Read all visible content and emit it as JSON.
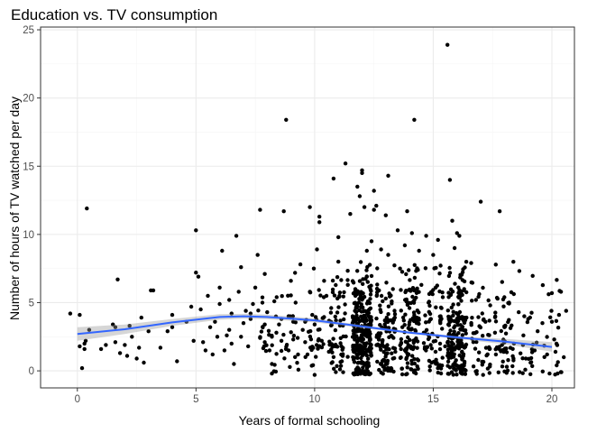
{
  "chart_data": {
    "type": "scatter",
    "title": "Education vs. TV consumption",
    "xlabel": "Years of formal schooling",
    "ylabel": "Number of hours of TV watched per day",
    "xlim": [
      -1.55,
      20.95
    ],
    "ylim": [
      -1.25,
      25.2
    ],
    "x_ticks": [
      0,
      5,
      10,
      15,
      20
    ],
    "y_ticks": [
      0,
      5,
      10,
      15,
      20,
      25
    ],
    "grid": true,
    "theme": "bw",
    "colors": {
      "points": "#000000",
      "smooth_line": "#3366FF",
      "confidence_band": "#999999",
      "grid_major": "#EBEBEB",
      "grid_minor": "#F5F5F5",
      "panel_border": "#333333"
    },
    "smooth": {
      "method": "loess",
      "x": [
        0,
        2,
        4,
        6,
        7,
        8,
        10,
        12,
        14,
        16,
        18,
        20
      ],
      "y": [
        2.7,
        3.05,
        3.55,
        3.95,
        4.0,
        3.95,
        3.7,
        3.25,
        2.8,
        2.45,
        2.15,
        1.75
      ],
      "lo": [
        2.2,
        2.7,
        3.3,
        3.75,
        3.82,
        3.78,
        3.55,
        3.15,
        2.72,
        2.35,
        1.95,
        1.4
      ],
      "hi": [
        3.2,
        3.4,
        3.8,
        4.15,
        4.18,
        4.12,
        3.85,
        3.35,
        2.88,
        2.55,
        2.35,
        2.1
      ]
    },
    "series": [
      {
        "points": [
          [
            -0.3,
            4.2
          ],
          [
            0.1,
            4.1
          ],
          [
            0.2,
            0.2
          ],
          [
            0.1,
            1.8
          ],
          [
            0.3,
            1.6
          ],
          [
            0.3,
            2.0
          ],
          [
            0.35,
            2.2
          ],
          [
            0.4,
            11.9
          ],
          [
            0.5,
            3.0
          ],
          [
            1.0,
            1.6
          ],
          [
            1.2,
            1.9
          ],
          [
            1.5,
            3.4
          ],
          [
            1.6,
            3.2
          ],
          [
            1.6,
            2.1
          ],
          [
            1.7,
            6.7
          ],
          [
            1.8,
            1.3
          ],
          [
            2.0,
            1.9
          ],
          [
            2.1,
            1.1
          ],
          [
            2.2,
            3.3
          ],
          [
            2.3,
            2.5
          ],
          [
            2.5,
            0.9
          ],
          [
            2.6,
            1.7
          ],
          [
            2.7,
            3.9
          ],
          [
            2.8,
            0.6
          ],
          [
            3.0,
            2.9
          ],
          [
            3.1,
            5.9
          ],
          [
            3.2,
            5.9
          ],
          [
            3.5,
            1.7
          ],
          [
            3.8,
            2.9
          ],
          [
            4.0,
            4.1
          ],
          [
            4.0,
            3.2
          ],
          [
            4.2,
            0.7
          ],
          [
            4.6,
            3.6
          ],
          [
            4.8,
            4.7
          ],
          [
            4.9,
            2.2
          ],
          [
            5.0,
            7.2
          ],
          [
            5.0,
            10.3
          ],
          [
            5.1,
            6.9
          ],
          [
            5.2,
            4.5
          ],
          [
            5.3,
            2.1
          ],
          [
            5.4,
            1.5
          ],
          [
            5.5,
            5.5
          ],
          [
            5.6,
            3.2
          ],
          [
            5.7,
            1.2
          ],
          [
            5.8,
            3.6
          ],
          [
            5.9,
            2.5
          ],
          [
            6.0,
            6.1
          ],
          [
            6.0,
            4.9
          ],
          [
            6.1,
            8.8
          ],
          [
            6.2,
            1.5
          ],
          [
            6.3,
            2.6
          ],
          [
            6.4,
            3.0
          ],
          [
            6.4,
            5.2
          ],
          [
            6.5,
            2.0
          ],
          [
            6.5,
            4.2
          ],
          [
            6.6,
            0.5
          ],
          [
            6.7,
            9.9
          ],
          [
            6.8,
            5.8
          ],
          [
            6.9,
            2.5
          ],
          [
            6.9,
            7.6
          ],
          [
            7.0,
            3.5
          ],
          [
            7.1,
            4.4
          ],
          [
            7.2,
            1.8
          ],
          [
            7.3,
            4.2
          ],
          [
            7.3,
            3.8
          ],
          [
            7.4,
            4.9
          ],
          [
            7.5,
            6.1
          ],
          [
            7.6,
            8.5
          ],
          [
            7.7,
            11.8
          ],
          [
            7.8,
            5.0
          ],
          [
            7.9,
            3.4
          ],
          [
            7.9,
            7.1
          ],
          [
            8.0,
            4.3
          ],
          [
            8.1,
            1.5
          ],
          [
            8.2,
            2.5
          ],
          [
            8.2,
            0.5
          ],
          [
            8.2,
            -0.2
          ],
          [
            8.3,
            5.1
          ],
          [
            8.4,
            5.4
          ],
          [
            8.5,
            3.4
          ],
          [
            8.6,
            3.8
          ],
          [
            8.6,
            2.2
          ],
          [
            8.7,
            11.7
          ],
          [
            8.8,
            18.4
          ],
          [
            8.9,
            4.0
          ],
          [
            8.9,
            1.5
          ],
          [
            9.0,
            6.6
          ],
          [
            9.1,
            3.6
          ],
          [
            9.1,
            2.3
          ],
          [
            9.2,
            5.0
          ],
          [
            9.3,
            1.2
          ],
          [
            9.4,
            7.8
          ],
          [
            9.5,
            3.0
          ],
          [
            9.6,
            3.6
          ],
          [
            9.6,
            2.1
          ],
          [
            9.7,
            1.2
          ],
          [
            9.8,
            5.8
          ],
          [
            9.8,
            12.0
          ],
          [
            9.9,
            4.1
          ],
          [
            10.0,
            3.4
          ],
          [
            10.0,
            -0.3
          ],
          [
            10.1,
            8.9
          ],
          [
            10.2,
            10.9
          ],
          [
            10.2,
            11.3
          ],
          [
            10.3,
            2.2
          ],
          [
            10.4,
            6.6
          ],
          [
            10.5,
            5.5
          ],
          [
            10.6,
            1.4
          ],
          [
            10.7,
            4.6
          ],
          [
            10.8,
            14.1
          ],
          [
            10.9,
            3.7
          ],
          [
            11.0,
            8.0
          ],
          [
            11.0,
            9.8
          ],
          [
            11.1,
            2.4
          ],
          [
            11.2,
            -0.1
          ],
          [
            11.3,
            15.2
          ],
          [
            11.4,
            6.3
          ],
          [
            11.5,
            11.5
          ],
          [
            11.6,
            3.5
          ],
          [
            11.7,
            5.8
          ],
          [
            11.8,
            13.5
          ],
          [
            11.9,
            12.8
          ],
          [
            12.0,
            14.5
          ],
          [
            12.0,
            14.7
          ],
          [
            12.1,
            12.0
          ],
          [
            12.2,
            6.9
          ],
          [
            12.2,
            8.8
          ],
          [
            12.3,
            3.4
          ],
          [
            12.4,
            9.5
          ],
          [
            12.5,
            11.8
          ],
          [
            12.5,
            13.2
          ],
          [
            12.6,
            12.1
          ],
          [
            12.8,
            8.9
          ],
          [
            13.0,
            11.4
          ],
          [
            13.1,
            8.5
          ],
          [
            13.1,
            14.3
          ],
          [
            13.2,
            3.7
          ],
          [
            13.3,
            6.0
          ],
          [
            13.4,
            1.4
          ],
          [
            13.5,
            10.3
          ],
          [
            13.6,
            7.5
          ],
          [
            13.7,
            3.2
          ],
          [
            13.8,
            9.2
          ],
          [
            13.9,
            11.7
          ],
          [
            14.0,
            4.6
          ],
          [
            14.1,
            10.1
          ],
          [
            14.2,
            18.4
          ],
          [
            14.3,
            3.5
          ],
          [
            14.4,
            8.8
          ],
          [
            14.5,
            6.3
          ],
          [
            14.6,
            2.8
          ],
          [
            14.7,
            9.9
          ],
          [
            14.8,
            5.0
          ],
          [
            14.9,
            3.8
          ],
          [
            15.0,
            8.5
          ],
          [
            15.1,
            6.1
          ],
          [
            15.2,
            9.6
          ],
          [
            15.3,
            3.5
          ],
          [
            15.4,
            5.4
          ],
          [
            15.5,
            1.8
          ],
          [
            15.6,
            23.9
          ],
          [
            15.7,
            14.0
          ],
          [
            15.8,
            11.0
          ],
          [
            15.9,
            9.0
          ],
          [
            16.0,
            10.1
          ],
          [
            16.1,
            9.9
          ],
          [
            16.3,
            6.0
          ],
          [
            16.4,
            3.9
          ],
          [
            16.6,
            7.9
          ],
          [
            16.8,
            5.2
          ],
          [
            17.0,
            12.4
          ],
          [
            17.2,
            3.6
          ],
          [
            17.4,
            4.8
          ],
          [
            17.6,
            2.8
          ],
          [
            17.8,
            11.7
          ],
          [
            18.0,
            3.2
          ],
          [
            18.2,
            5.0
          ],
          [
            18.4,
            2.0
          ],
          [
            18.6,
            4.3
          ],
          [
            18.8,
            2.6
          ],
          [
            19.0,
            3.8
          ],
          [
            19.2,
            1.5
          ],
          [
            19.4,
            2.9
          ],
          [
            19.6,
            3.5
          ],
          [
            19.8,
            1.2
          ],
          [
            20.0,
            5.7
          ],
          [
            20.0,
            3.6
          ],
          [
            20.1,
            2.3
          ],
          [
            20.2,
            0.4
          ],
          [
            20.3,
            4.1
          ],
          [
            20.5,
            1.0
          ],
          [
            20.6,
            4.4
          ],
          [
            19.9,
            -0.2
          ],
          [
            20.4,
            -0.1
          ],
          [
            19.1,
            0.6
          ],
          [
            18.9,
            0.9
          ],
          [
            18.1,
            0.3
          ],
          [
            17.1,
            -0.3
          ],
          [
            16.9,
            0.8
          ],
          [
            16.2,
            -0.2
          ]
        ],
        "dense_bands": [
          {
            "x": 12,
            "count": 260
          },
          {
            "x": 16,
            "count": 190
          },
          {
            "x": 14,
            "count": 120
          },
          {
            "x": 13,
            "count": 110
          },
          {
            "x": 11,
            "count": 60
          },
          {
            "x": 15,
            "count": 70
          },
          {
            "x": 18,
            "count": 55
          },
          {
            "x": 17,
            "count": 45
          },
          {
            "x": 10,
            "count": 35
          },
          {
            "x": 9,
            "count": 20
          },
          {
            "x": 8,
            "count": 22
          },
          {
            "x": 19,
            "count": 22
          },
          {
            "x": 20,
            "count": 20
          }
        ]
      }
    ]
  }
}
